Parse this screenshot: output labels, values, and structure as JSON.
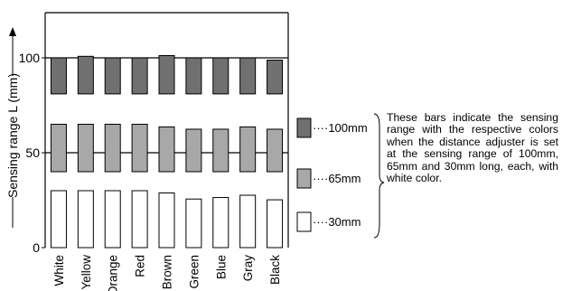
{
  "chart_data": {
    "type": "bar",
    "title": "",
    "xlabel": "",
    "ylabel": "Sensing range L (mm)",
    "ylim": [
      0,
      125
    ],
    "yticks": [
      0,
      50,
      100
    ],
    "categories": [
      "White",
      "Yellow",
      "Orange",
      "Red",
      "Brown",
      "Green",
      "Blue",
      "Gray",
      "Black"
    ],
    "series": [
      {
        "name": "100mm",
        "fill": "#707070",
        "low": [
          81,
          81,
          81,
          81,
          81,
          81,
          81,
          81,
          81
        ],
        "high": [
          100,
          100.8,
          100,
          100,
          101.2,
          100,
          100,
          100,
          98.8
        ]
      },
      {
        "name": "65mm",
        "fill": "#a8a8a8",
        "low": [
          40,
          40,
          40,
          40,
          40,
          40,
          40,
          40,
          40
        ],
        "high": [
          65,
          65,
          65,
          65,
          63.6,
          62.4,
          62.4,
          63.6,
          62.4
        ]
      },
      {
        "name": "30mm",
        "fill": "#ffffff",
        "low": [
          0,
          0,
          0,
          0,
          0,
          0,
          0,
          0,
          0
        ],
        "high": [
          30,
          30,
          30,
          30,
          28.8,
          25.6,
          26.4,
          27.6,
          25.2
        ]
      }
    ],
    "reference_lines": [
      100,
      50
    ],
    "grid": false,
    "legend_position": "right",
    "legend_prefix": "····"
  },
  "description": "These bars indicate the sensing range with the respective colors when the distance adjuster is set at the sensing range of 100mm, 65mm and 30mm long, each, with white color."
}
